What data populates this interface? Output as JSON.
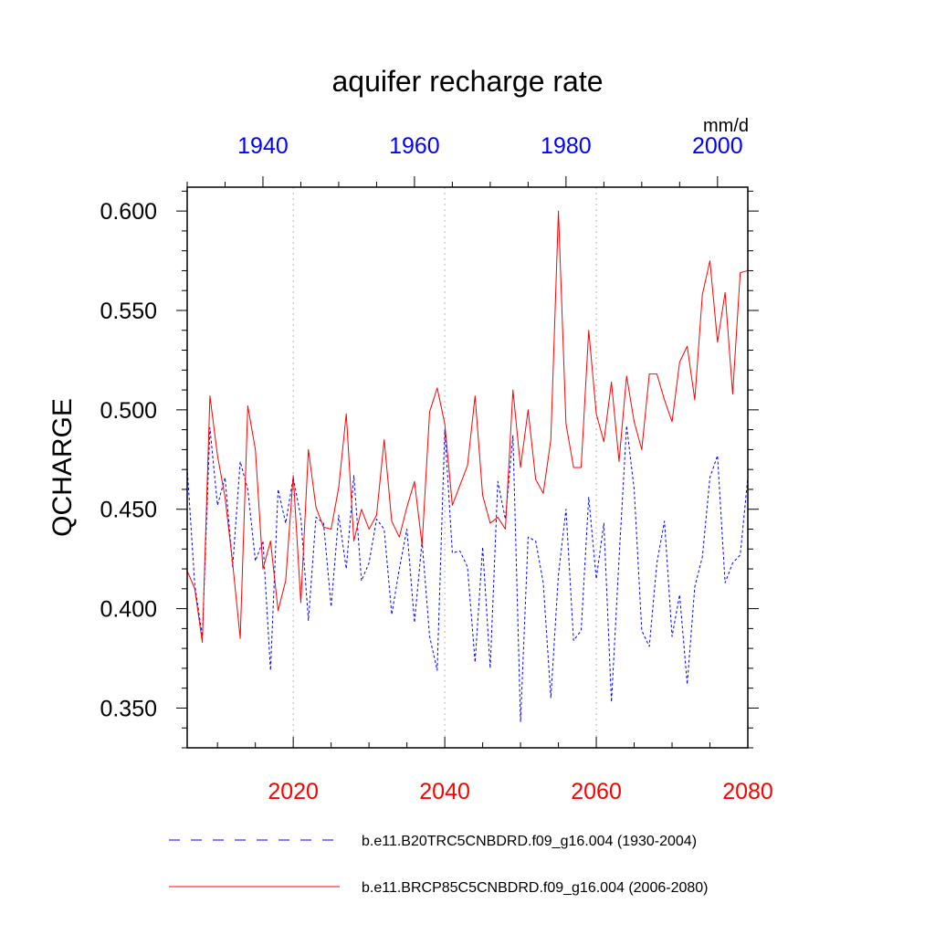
{
  "chart_data": {
    "type": "line",
    "title": "aquifer recharge rate",
    "ylabel": "QCHARGE",
    "units": "mm/d",
    "ylim": [
      0.33,
      0.612
    ],
    "y_ticks": [
      0.35,
      0.4,
      0.45,
      0.5,
      0.55,
      0.6
    ],
    "y_tick_labels": [
      "0.350",
      "0.400",
      "0.450",
      "0.500",
      "0.550",
      "0.600"
    ],
    "x_bottom": {
      "range": [
        2006,
        2080
      ],
      "ticks": [
        2020,
        2040,
        2060,
        2080
      ],
      "tick_labels": [
        "2020",
        "2040",
        "2060",
        "2080"
      ],
      "color": "#ff0000"
    },
    "x_top": {
      "range": [
        1930,
        2004
      ],
      "ticks": [
        1940,
        1960,
        1980,
        2000
      ],
      "tick_labels": [
        "1940",
        "1960",
        "1980",
        "2000"
      ],
      "color": "#0000ff"
    },
    "gridlines_x": [
      2020,
      2040,
      2060
    ],
    "series": [
      {
        "name": "b.e11.B20TRC5CNBDRD.f09_g16.004 (1930-2004)",
        "style": "dashed",
        "color": "#0000ff",
        "axis": "top",
        "x_start": 1930,
        "values": [
          0.471,
          0.412,
          0.386,
          0.491,
          0.452,
          0.466,
          0.421,
          0.474,
          0.46,
          0.424,
          0.434,
          0.369,
          0.46,
          0.443,
          0.466,
          0.446,
          0.394,
          0.446,
          0.443,
          0.401,
          0.447,
          0.42,
          0.467,
          0.414,
          0.423,
          0.445,
          0.44,
          0.397,
          0.42,
          0.44,
          0.393,
          0.434,
          0.386,
          0.369,
          0.49,
          0.428,
          0.429,
          0.421,
          0.373,
          0.431,
          0.37,
          0.464,
          0.445,
          0.487,
          0.343,
          0.436,
          0.434,
          0.413,
          0.355,
          0.417,
          0.45,
          0.384,
          0.389,
          0.456,
          0.415,
          0.443,
          0.353,
          0.425,
          0.492,
          0.46,
          0.389,
          0.381,
          0.423,
          0.444,
          0.386,
          0.407,
          0.362,
          0.411,
          0.426,
          0.466,
          0.477,
          0.413,
          0.423,
          0.427,
          0.466
        ]
      },
      {
        "name": "b.e11.BRCP85C5CNBDRD.f09_g16.004 (2006-2080)",
        "style": "solid",
        "color": "#ff0000",
        "axis": "bottom",
        "x_start": 2006,
        "values": [
          0.419,
          0.41,
          0.383,
          0.507,
          0.477,
          0.456,
          0.423,
          0.385,
          0.502,
          0.48,
          0.42,
          0.434,
          0.399,
          0.414,
          0.467,
          0.403,
          0.48,
          0.451,
          0.441,
          0.44,
          0.461,
          0.498,
          0.434,
          0.45,
          0.44,
          0.447,
          0.485,
          0.444,
          0.436,
          0.451,
          0.464,
          0.432,
          0.499,
          0.511,
          0.493,
          0.452,
          0.462,
          0.472,
          0.507,
          0.457,
          0.443,
          0.446,
          0.44,
          0.51,
          0.471,
          0.5,
          0.465,
          0.458,
          0.485,
          0.6,
          0.493,
          0.471,
          0.471,
          0.54,
          0.498,
          0.484,
          0.514,
          0.474,
          0.517,
          0.494,
          0.48,
          0.518,
          0.518,
          0.505,
          0.494,
          0.524,
          0.532,
          0.505,
          0.558,
          0.575,
          0.534,
          0.559,
          0.508,
          0.569,
          0.57
        ]
      }
    ]
  }
}
